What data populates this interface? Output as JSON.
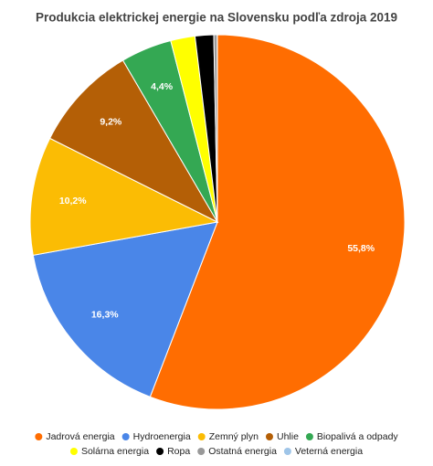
{
  "chart_data": {
    "type": "pie",
    "title": "Produkcia elektrickej energie na Slovensku podľa zdroja 2019",
    "categories": [
      "Jadrová energia",
      "Hydroenergia",
      "Zemný plyn",
      "Uhlie",
      "Biopalivá a odpady",
      "Solárna energia",
      "Ropa",
      "Ostatná energia",
      "Veterná energia"
    ],
    "values": [
      55.8,
      16.3,
      10.2,
      9.2,
      4.4,
      2.1,
      1.6,
      0.3,
      0.01
    ],
    "value_labels": [
      "55,8%",
      "16,3%",
      "10,2%",
      "9,2%",
      "4,4%",
      null,
      null,
      null,
      null
    ],
    "colors": [
      "#ff6d01",
      "#4a86e8",
      "#fbbc04",
      "#b45f06",
      "#34a853",
      "#ffff00",
      "#000000",
      "#999999",
      "#9fc5e8"
    ],
    "legend": "bottom"
  }
}
